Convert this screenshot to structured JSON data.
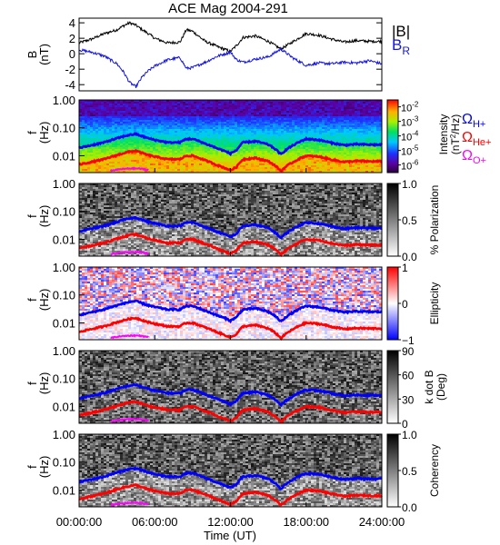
{
  "title": "ACE Mag 2004-291",
  "time_axis": {
    "label": "Time (UT)",
    "ticks": [
      "00:00:00",
      "06:00:00",
      "12:00:00",
      "18:00:00",
      "24:00:00"
    ],
    "range_hours": [
      0,
      24
    ]
  },
  "colors": {
    "B_total": "#000000",
    "B_R": "#1515e0",
    "omega_H": "#0000ff",
    "omega_He": "#ff0000",
    "omega_O": "#ff00ff"
  },
  "legend": {
    "total": "|B|",
    "radial": "B",
    "radial_sub": "R",
    "omega": "Ω",
    "h_sub": "H+",
    "he_sub": "He+",
    "o_sub": "O+"
  },
  "chart_data": [
    {
      "type": "line",
      "panel": "magnetic-field",
      "ylabel": "B",
      "yunit": "(nT)",
      "ylim": [
        -4.8,
        4.6
      ],
      "yticks": [
        4,
        2,
        0,
        -2,
        -4
      ],
      "ytick_labels": [
        "4",
        "2",
        "0",
        "-2",
        "-4"
      ],
      "x": [
        0,
        1,
        2,
        3,
        3.5,
        4,
        4.5,
        5,
        5.5,
        6,
        7,
        8,
        8.5,
        9,
        10,
        11,
        12,
        12.5,
        13,
        14,
        15,
        16,
        17,
        18,
        19,
        20,
        21,
        22,
        23,
        24
      ],
      "series": [
        {
          "name": "|B|",
          "values": [
            1.4,
            1.9,
            2.6,
            3.1,
            3.6,
            4.0,
            3.7,
            3.1,
            2.6,
            2.0,
            1.4,
            1.5,
            3.1,
            2.9,
            1.6,
            0.9,
            0.3,
            1.1,
            2.1,
            2.3,
            1.6,
            0.6,
            1.6,
            2.6,
            2.4,
            1.9,
            1.5,
            1.7,
            1.6,
            1.6
          ]
        },
        {
          "name": "B_R",
          "values": [
            0.5,
            0.2,
            -0.3,
            -1.3,
            -2.3,
            -3.7,
            -4.3,
            -3.0,
            -2.2,
            -1.6,
            -0.8,
            -0.5,
            -1.9,
            -1.8,
            -1.1,
            -0.3,
            0.2,
            -0.8,
            -1.1,
            -0.7,
            -0.4,
            0.6,
            -0.6,
            -1.5,
            -1.2,
            -1.3,
            -1.1,
            -1.2,
            -0.9,
            -1.3
          ]
        }
      ]
    },
    {
      "type": "heatmap",
      "panel": "intensity-spectrogram",
      "ylabel": "f",
      "yunit": "(Hz)",
      "yscale": "log",
      "ylim": [
        0.0025,
        1.0
      ],
      "yticks": [
        1.0,
        0.1,
        0.01
      ],
      "ytick_labels": [
        "1.00",
        "0.10",
        "0.01"
      ],
      "colorbar": {
        "label": "Intensity",
        "unit_pre": "(nT",
        "unit_sup": "2",
        "unit_post": "/Hz)",
        "scale": "log",
        "range": [
          3e-07,
          0.03
        ],
        "ticks": [
          0.01,
          0.001,
          0.0001,
          1e-05,
          1e-06
        ],
        "tick_base": "10",
        "tick_exponents": [
          "-2",
          "-3",
          "-4",
          "-5",
          "-6"
        ],
        "colormap": "rainbow"
      }
    },
    {
      "type": "heatmap",
      "panel": "polarization-spectrogram",
      "ylabel": "f",
      "yunit": "(Hz)",
      "yscale": "log",
      "ylim": [
        0.0025,
        1.0
      ],
      "yticks": [
        1.0,
        0.1,
        0.01
      ],
      "ytick_labels": [
        "1.00",
        "0.10",
        "0.01"
      ],
      "colorbar": {
        "label": "% Polarization",
        "range": [
          0,
          1
        ],
        "ticks": [
          1.0,
          0.5,
          0.0
        ],
        "tick_labels": [
          "1.0",
          "0.5",
          "0.0"
        ],
        "colormap": "greyscale"
      }
    },
    {
      "type": "heatmap",
      "panel": "ellipticity-spectrogram",
      "ylabel": "f",
      "yunit": "(Hz)",
      "yscale": "log",
      "ylim": [
        0.0025,
        1.0
      ],
      "yticks": [
        1.0,
        0.1,
        0.01
      ],
      "ytick_labels": [
        "1.00",
        "0.10",
        "0.01"
      ],
      "colorbar": {
        "label": "Ellipticity",
        "range": [
          -1,
          1
        ],
        "ticks": [
          1,
          0,
          -1
        ],
        "tick_labels": [
          "1",
          "0",
          "−1"
        ],
        "colormap": "blue-white-red"
      }
    },
    {
      "type": "heatmap",
      "panel": "wave-angle-spectrogram",
      "ylabel": "f",
      "yunit": "(Hz)",
      "yscale": "log",
      "ylim": [
        0.0025,
        1.0
      ],
      "yticks": [
        1.0,
        0.1,
        0.01
      ],
      "ytick_labels": [
        "1.00",
        "0.10",
        "0.01"
      ],
      "colorbar": {
        "label": "k dot B",
        "unit": "(Deg)",
        "range": [
          0,
          90
        ],
        "ticks": [
          90,
          60,
          30,
          0
        ],
        "tick_labels": [
          "90",
          "60",
          "30",
          "0"
        ],
        "colormap": "greyscale"
      }
    },
    {
      "type": "heatmap",
      "panel": "coherency-spectrogram",
      "ylabel": "f",
      "yunit": "(Hz)",
      "yscale": "log",
      "ylim": [
        0.0025,
        1.0
      ],
      "yticks": [
        1.0,
        0.1,
        0.01
      ],
      "ytick_labels": [
        "1.00",
        "0.10",
        "0.01"
      ],
      "colorbar": {
        "label": "Coherency",
        "range": [
          0,
          1
        ],
        "ticks": [
          1.0,
          0.5,
          0.0
        ],
        "tick_labels": [
          "1.0",
          "0.5",
          "0.0"
        ],
        "colormap": "greyscale"
      }
    }
  ],
  "gyrofrequency_curves": {
    "x": [
      0,
      1,
      2,
      3,
      4,
      4.5,
      5,
      5.5,
      6,
      7,
      8,
      8.5,
      9,
      10,
      11,
      12,
      12.5,
      13,
      14,
      15,
      16,
      17,
      18,
      19,
      20,
      21,
      22,
      23,
      24
    ],
    "series": [
      {
        "name": "ΩH+",
        "values": [
          0.019,
          0.024,
          0.03,
          0.042,
          0.056,
          0.06,
          0.05,
          0.042,
          0.037,
          0.03,
          0.03,
          0.04,
          0.04,
          0.027,
          0.018,
          0.012,
          0.016,
          0.03,
          0.033,
          0.025,
          0.011,
          0.024,
          0.04,
          0.037,
          0.029,
          0.024,
          0.026,
          0.025,
          0.025
        ]
      },
      {
        "name": "ΩHe+",
        "values": [
          0.0048,
          0.006,
          0.0075,
          0.0105,
          0.014,
          0.015,
          0.0125,
          0.0105,
          0.0093,
          0.0075,
          0.0075,
          0.01,
          0.01,
          0.0068,
          0.0045,
          0.003,
          0.004,
          0.0075,
          0.0083,
          0.0063,
          0.0028,
          0.006,
          0.01,
          0.0093,
          0.0073,
          0.006,
          0.0065,
          0.0063,
          0.0063
        ]
      },
      {
        "name": "ΩO+",
        "x_range": [
          2.5,
          5.5
        ],
        "values": [
          0.0029,
          0.0033,
          0.0035,
          0.0035,
          0.0031
        ]
      }
    ]
  }
}
